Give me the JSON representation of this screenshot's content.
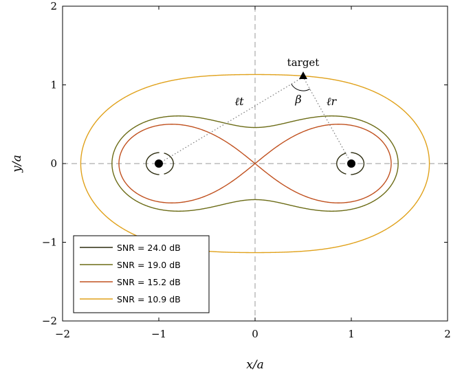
{
  "chart_data": {
    "type": "line",
    "xlabel": "x/a",
    "ylabel": "y/a",
    "xlim": [
      -2,
      2
    ],
    "ylim": [
      -2,
      2
    ],
    "x_ticks": [
      "−2",
      "−1",
      "0",
      "1",
      "2"
    ],
    "y_ticks": [
      "−2",
      "−1",
      "0",
      "1",
      "2"
    ],
    "legend_position": "bottom-left",
    "grid": false,
    "reference_lines": {
      "x": 0,
      "y": 0,
      "style": "dashed",
      "color": "#999999"
    },
    "transmitter": {
      "x": -1,
      "y": 0
    },
    "receiver": {
      "x": 1,
      "y": 0
    },
    "target": {
      "x": 0.5,
      "y": 1.1,
      "label": "target"
    },
    "annotations": {
      "angle": "β",
      "path_t": "ℓt",
      "path_r": "ℓr"
    },
    "series": [
      {
        "name": "SNR = 24.0 dB",
        "color": "#2b2b0e",
        "oval_product": 0.28
      },
      {
        "name": "SNR = 19.0 dB",
        "color": "#6b6b15",
        "oval_product": 1.21
      },
      {
        "name": "SNR = 15.2 dB",
        "color": "#c0501e",
        "oval_product": 1.0
      },
      {
        "name": "SNR = 10.9 dB",
        "color": "#e0a11a",
        "oval_product": 2.28
      }
    ]
  }
}
